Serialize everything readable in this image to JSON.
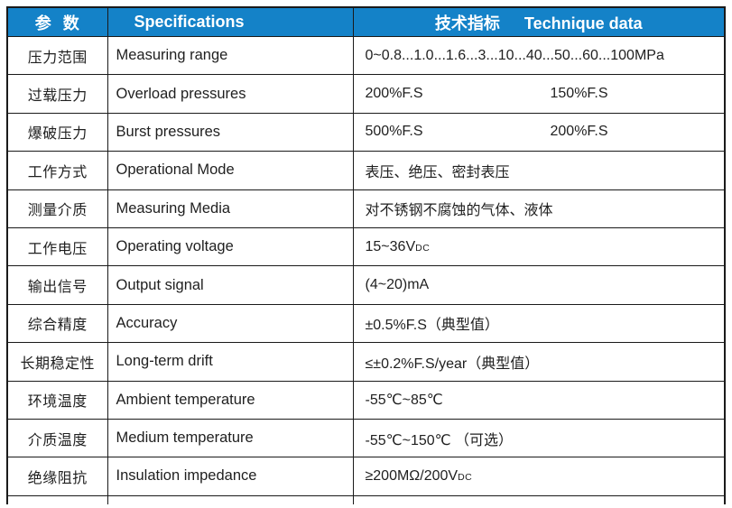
{
  "colors": {
    "header_bg": "#1482c8",
    "header_text": "#ffffff",
    "border": "#1a1a1a",
    "body_text": "#1f1f1f",
    "page_bg": "#ffffff"
  },
  "table": {
    "header": {
      "param": "参  数",
      "spec": "Specifications",
      "tech_zh": "技术指标",
      "tech_en": "Technique data"
    },
    "rows": [
      {
        "param": "压力范围",
        "spec": "Measuring range",
        "value": "0~0.8...1.0...1.6...3...10...40...50...60...100MPa"
      },
      {
        "param": "过载压力",
        "spec": "Overload pressures",
        "value": "200%F.S",
        "value2": "150%F.S"
      },
      {
        "param": "爆破压力",
        "spec": "Burst pressures",
        "value": "500%F.S",
        "value2": "200%F.S"
      },
      {
        "param": "工作方式",
        "spec": "Operational Mode",
        "value": "表压、绝压、密封表压"
      },
      {
        "param": "测量介质",
        "spec": "Measuring Media",
        "value": "对不锈钢不腐蚀的气体、液体"
      },
      {
        "param": "工作电压",
        "spec": "Operating voltage",
        "value": "15~36V",
        "value_sub": "DC"
      },
      {
        "param": "输出信号",
        "spec": "Output signal",
        "value": "(4~20)mA"
      },
      {
        "param": "综合精度",
        "spec": "Accuracy",
        "value": "±0.5%F.S（典型值）"
      },
      {
        "param": "长期稳定性",
        "spec": "Long-term drift",
        "value": "≤±0.2%F.S/year（典型值）"
      },
      {
        "param": "环境温度",
        "spec": "Ambient temperature",
        "value": "-55℃~85℃"
      },
      {
        "param": "介质温度",
        "spec": "Medium temperature",
        "value": "-55℃~150℃ （可选）"
      },
      {
        "param": "绝缘阻抗",
        "spec": "Insulation impedance",
        "value": "≥200MΩ/200V",
        "value_sub": "DC"
      }
    ]
  }
}
